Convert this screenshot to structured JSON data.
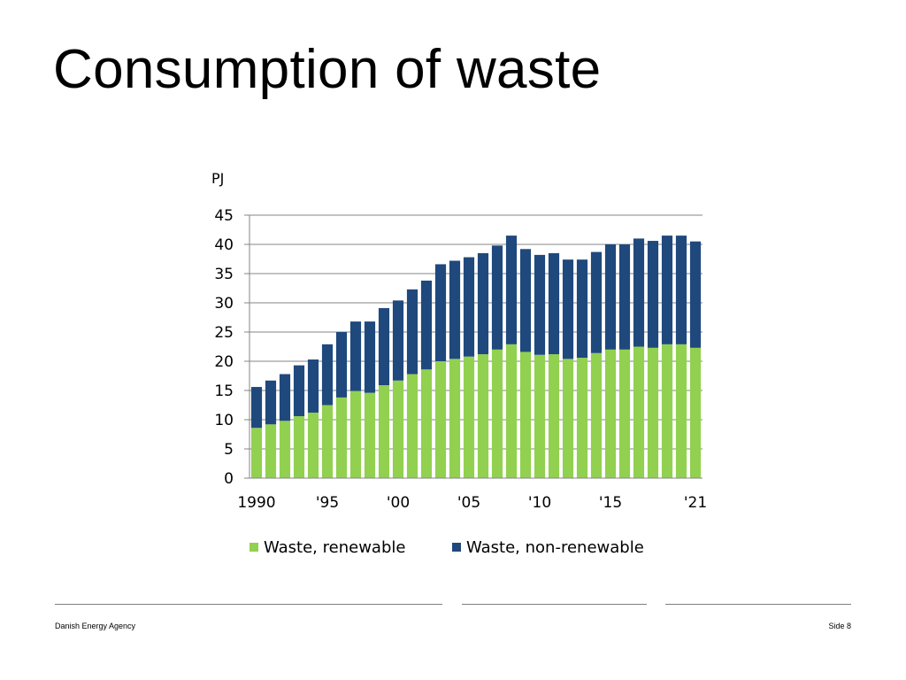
{
  "slide": {
    "title": "Consumption of waste"
  },
  "footer": {
    "organization": "Danish Energy Agency",
    "page": "Side 8"
  },
  "chart_data": {
    "type": "bar",
    "stacked": true,
    "unit_label": "PJ",
    "ylim": [
      0,
      45
    ],
    "yticks": [
      0,
      5,
      10,
      15,
      20,
      25,
      30,
      35,
      40,
      45
    ],
    "grid": true,
    "legend_position": "bottom",
    "categories": [
      1990,
      1991,
      1992,
      1993,
      1994,
      1995,
      1996,
      1997,
      1998,
      1999,
      2000,
      2001,
      2002,
      2003,
      2004,
      2005,
      2006,
      2007,
      2008,
      2009,
      2010,
      2011,
      2012,
      2013,
      2014,
      2015,
      2016,
      2017,
      2018,
      2019,
      2020,
      2021
    ],
    "x_tick_labels": [
      {
        "category": 1990,
        "label": "1990"
      },
      {
        "category": 1995,
        "label": "'95"
      },
      {
        "category": 2000,
        "label": "'00"
      },
      {
        "category": 2005,
        "label": "'05"
      },
      {
        "category": 2010,
        "label": "'10"
      },
      {
        "category": 2015,
        "label": "'15"
      },
      {
        "category": 2021,
        "label": "'21"
      }
    ],
    "series": [
      {
        "name": "Waste, renewable",
        "color": "#92d050",
        "values": [
          8.6,
          9.2,
          9.8,
          10.6,
          11.2,
          12.5,
          13.8,
          14.9,
          14.6,
          15.9,
          16.7,
          17.8,
          18.6,
          20.0,
          20.4,
          20.8,
          21.2,
          22.0,
          22.9,
          21.6,
          21.1,
          21.2,
          20.4,
          20.6,
          21.4,
          22.0,
          22.0,
          22.5,
          22.3,
          22.9,
          22.9,
          22.3
        ]
      },
      {
        "name": "Waste, non-renewable",
        "color": "#1f497d",
        "values": [
          7.0,
          7.5,
          8.0,
          8.7,
          9.1,
          10.4,
          11.2,
          11.9,
          12.2,
          13.2,
          13.7,
          14.5,
          15.2,
          16.6,
          16.8,
          17.0,
          17.3,
          17.8,
          18.6,
          17.6,
          17.1,
          17.3,
          17.0,
          16.8,
          17.3,
          18.0,
          18.0,
          18.5,
          18.3,
          18.6,
          18.6,
          18.2
        ]
      }
    ]
  }
}
